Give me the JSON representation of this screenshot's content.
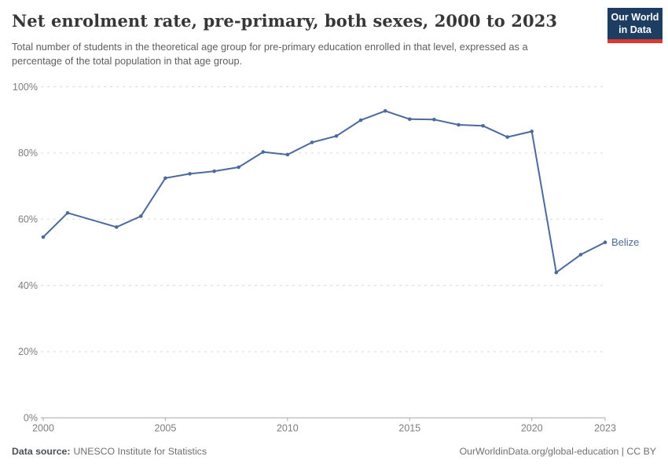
{
  "header": {
    "title": "Net enrolment rate, pre-primary, both sexes, 2000 to 2023",
    "subtitle": "Total number of students in the theoretical age group for pre-primary education enrolled in that level, expressed as a percentage of the total population in that age group.",
    "logo": {
      "line1": "Our World",
      "line2": "in Data",
      "bg_color": "#1d3d63",
      "bar_color": "#dc3a2e"
    }
  },
  "chart_data": {
    "type": "line",
    "title": "Net enrolment rate, pre-primary, both sexes, 2000 to 2023",
    "xlabel": "",
    "ylabel": "",
    "xlim": [
      2000,
      2023
    ],
    "ylim": [
      0,
      100
    ],
    "grid": "horizontal-dashed",
    "x_ticks": [
      "2000",
      "2005",
      "2010",
      "2015",
      "2020",
      "2023"
    ],
    "y_ticks": [
      0,
      20,
      40,
      60,
      80,
      100
    ],
    "y_tick_suffix": "%",
    "series": [
      {
        "name": "Belize",
        "color": "#4c6a9c",
        "points": [
          [
            2000,
            54.6
          ],
          [
            2001,
            61.9
          ],
          [
            2003,
            57.6
          ],
          [
            2004,
            60.9
          ],
          [
            2005,
            72.4
          ],
          [
            2006,
            73.7
          ],
          [
            2007,
            74.5
          ],
          [
            2008,
            75.7
          ],
          [
            2009,
            80.3
          ],
          [
            2010,
            79.5
          ],
          [
            2011,
            83.2
          ],
          [
            2012,
            85.1
          ],
          [
            2013,
            89.9
          ],
          [
            2014,
            92.7
          ],
          [
            2015,
            90.2
          ],
          [
            2016,
            90.1
          ],
          [
            2017,
            88.5
          ],
          [
            2018,
            88.2
          ],
          [
            2019,
            84.8
          ],
          [
            2020,
            86.5
          ],
          [
            2021,
            43.9
          ],
          [
            2022,
            49.3
          ],
          [
            2023,
            53.0
          ]
        ],
        "note": "no data point for 2002"
      }
    ],
    "colors": {
      "gridline": "#dadada",
      "axis": "#a8a8a8",
      "tick_label": "#7d7d7d"
    }
  },
  "footer": {
    "datasource_label": "Data source:",
    "datasource_value": "UNESCO Institute for Statistics",
    "license": "OurWorldinData.org/global-education | CC BY"
  }
}
